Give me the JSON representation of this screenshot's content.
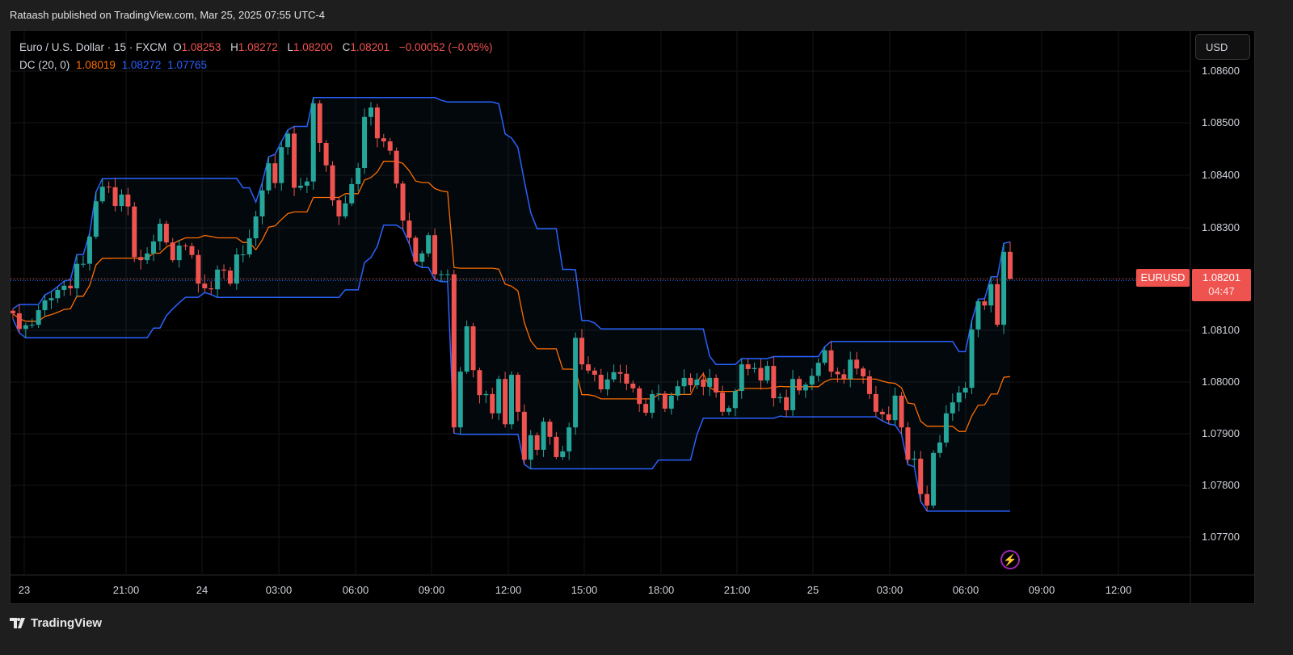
{
  "header": {
    "published": "Rataash published on TradingView.com, Mar 25, 2025 07:55 UTC-4"
  },
  "legend": {
    "symbol": "Euro / U.S. Dollar · 15 · FXCM",
    "o_label": "O",
    "open": "1.08253",
    "h_label": "H",
    "high": "1.08272",
    "l_label": "L",
    "low": "1.08200",
    "c_label": "C",
    "close": "1.08201",
    "change": "−0.00052 (−0.05%)",
    "indicator": "DC (20, 0)",
    "dc_basis": "1.08019",
    "dc_upper": "1.08272",
    "dc_lower": "1.07765"
  },
  "price_axis": {
    "currency": "USD",
    "ticks": [
      "1.08600",
      "1.08500",
      "1.08400",
      "1.08300",
      "1.08100",
      "1.08000",
      "1.07900",
      "1.07800",
      "1.07700"
    ],
    "symbol_tag": "EURUSD",
    "last_price": "1.08201",
    "countdown": "04:47"
  },
  "time_axis": {
    "ticks": [
      "23",
      "21:00",
      "24",
      "03:00",
      "06:00",
      "09:00",
      "12:00",
      "15:00",
      "18:00",
      "21:00",
      "25",
      "03:00",
      "06:00",
      "09:00",
      "12:00"
    ]
  },
  "footer": {
    "brand": "TradingView"
  },
  "colors": {
    "up": "#26a69a",
    "down": "#ef5350",
    "dc_upper_lower": "#2962ff",
    "dc_basis": "#ff6d00",
    "background": "#000000"
  },
  "icons": {
    "lightning": "lightning-icon",
    "logo": "tradingview-logo-icon"
  },
  "chart_data": {
    "type": "candlestick",
    "interval": "15",
    "indicator": {
      "name": "DC (20, 0)",
      "length": 20
    },
    "first_open": 1.0814,
    "closes": [
      1.08135,
      1.08105,
      1.08112,
      1.08113,
      1.08141,
      1.0816,
      1.08164,
      1.0818,
      1.08188,
      1.08183,
      1.0823,
      1.0823,
      1.08282,
      1.0835,
      1.08378,
      1.08377,
      1.08341,
      1.08363,
      1.0834,
      1.08243,
      1.08237,
      1.0825,
      1.08273,
      1.08307,
      1.08271,
      1.08237,
      1.08265,
      1.08264,
      1.08247,
      1.08192,
      1.08183,
      1.08181,
      1.08219,
      1.08217,
      1.08192,
      1.08248,
      1.08248,
      1.08279,
      1.08321,
      1.08371,
      1.08423,
      1.08385,
      1.08454,
      1.0848,
      1.08376,
      1.0838,
      1.08388,
      1.08538,
      1.08462,
      1.08419,
      1.08352,
      1.08321,
      1.08346,
      1.08383,
      1.08414,
      1.08512,
      1.0853,
      1.08471,
      1.08465,
      1.08447,
      1.08384,
      1.08313,
      1.0828,
      1.08234,
      1.0825,
      1.08285,
      1.0821,
      1.0821,
      1.0821,
      1.07916,
      1.08023,
      1.0811,
      1.08026,
      1.07978,
      1.0798,
      1.07943,
      1.08009,
      1.07922,
      1.08017,
      1.07946,
      1.07854,
      1.07901,
      1.07873,
      1.07927,
      1.07898,
      1.07859,
      1.0787,
      1.07916,
      1.08088,
      1.08037,
      1.08025,
      1.08017,
      1.07989,
      1.08008,
      1.08022,
      1.08019,
      1.08,
      1.07991,
      1.07961,
      1.07944,
      1.0798,
      1.07981,
      1.07952,
      1.07977,
      1.07995,
      1.08011,
      1.07997,
      1.08008,
      1.07994,
      1.08011,
      1.07983,
      1.07946,
      1.07953,
      1.07986,
      1.08037,
      1.08028,
      1.0803,
      1.08006,
      1.08034,
      1.07972,
      1.07974,
      1.07949,
      1.08009,
      1.07987,
      1.07998,
      1.08015,
      1.0804,
      1.08064,
      1.08023,
      1.08018,
      1.08009,
      1.08046,
      1.08029,
      1.08014,
      1.0798,
      1.07946,
      1.07941,
      1.0793,
      1.07977,
      1.07916,
      1.07854,
      1.07856,
      1.07788,
      1.07766,
      1.07867,
      1.07887,
      1.07943,
      1.07964,
      1.07983,
      1.07992,
      1.08104,
      1.08158,
      1.0815,
      1.08191,
      1.08113,
      1.08253,
      1.08201
    ],
    "last_bar": {
      "open": 1.08253,
      "high": 1.08272,
      "low": 1.082,
      "close": 1.08201
    },
    "ylim": [
      1.0763,
      1.0867
    ]
  }
}
